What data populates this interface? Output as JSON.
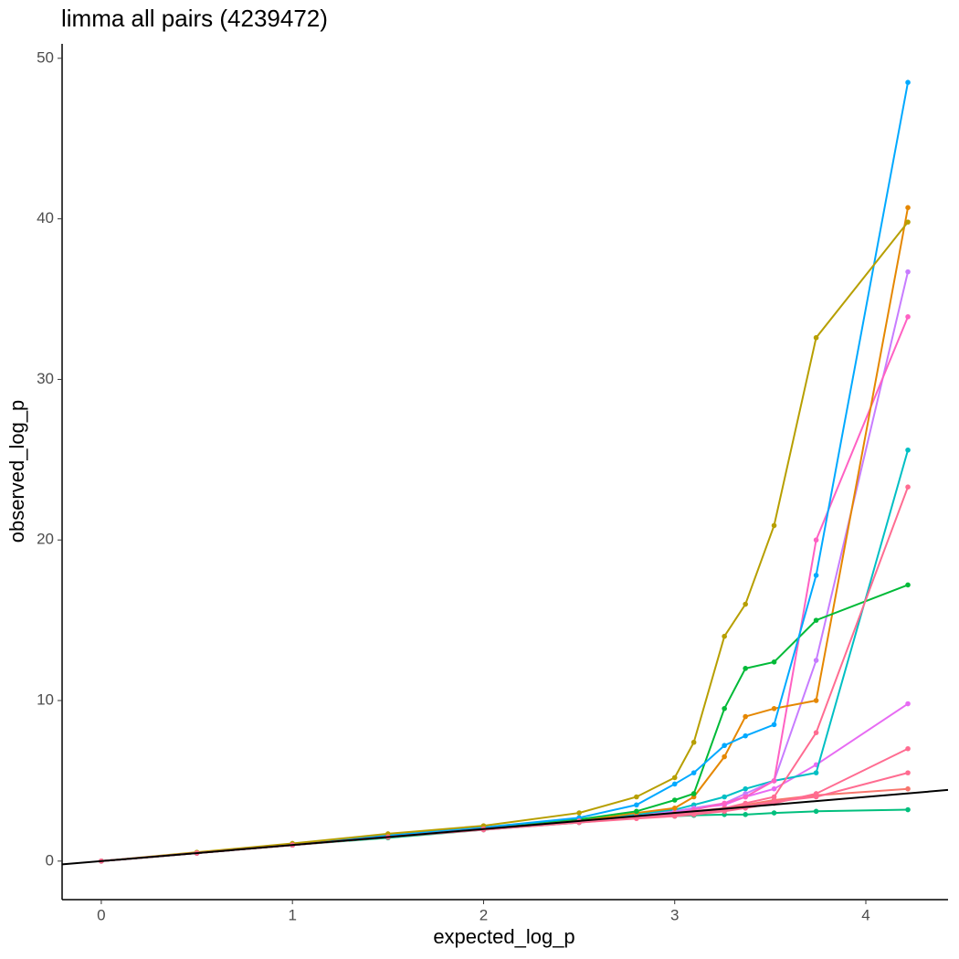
{
  "chart_data": {
    "type": "line",
    "title": "limma all pairs (4239472)",
    "x_label": "expected_log_p",
    "y_label": "observed_log_p",
    "xlim": [
      -0.205,
      4.43
    ],
    "ylim": [
      -2.4,
      50.9
    ],
    "xticks": [
      0,
      1,
      2,
      3,
      4
    ],
    "yticks": [
      0,
      10,
      20,
      30,
      40,
      50
    ],
    "grid": false,
    "points": true,
    "abline": {
      "slope": 1,
      "intercept": 0,
      "color": "#000000"
    },
    "x": [
      0,
      0.5,
      1,
      1.5,
      2,
      2.5,
      2.8,
      3,
      3.1,
      3.26,
      3.37,
      3.52,
      3.74,
      4.22
    ],
    "series": [
      {
        "color": "#00BF7D",
        "values": [
          0,
          0.5,
          1,
          1.45,
          1.95,
          2.4,
          2.7,
          2.8,
          2.85,
          2.9,
          2.9,
          3,
          3.1,
          3.2
        ]
      },
      {
        "color": "#F8766D",
        "values": [
          0,
          0.5,
          1,
          1.5,
          2,
          2.5,
          2.8,
          3,
          3.1,
          3.3,
          3.5,
          3.8,
          4.1,
          4.5
        ]
      },
      {
        "color": "#E76BF3",
        "values": [
          0,
          0.5,
          1,
          1.5,
          2,
          2.5,
          2.8,
          3.1,
          3.3,
          3.5,
          4,
          4.5,
          6,
          9.8
        ]
      },
      {
        "color": "#00BFC4",
        "values": [
          0,
          0.5,
          1,
          1.5,
          2,
          2.5,
          2.9,
          3.2,
          3.5,
          4,
          4.5,
          5,
          5.5,
          25.6
        ]
      },
      {
        "color": "#C77CFF",
        "values": [
          0,
          0.5,
          1,
          1.5,
          2,
          2.45,
          2.8,
          3.1,
          3.3,
          3.6,
          4.2,
          5,
          12.5,
          36.7
        ]
      },
      {
        "color": "#FF61C3",
        "values": [
          0,
          0.5,
          1,
          1.5,
          2,
          2.5,
          2.8,
          3,
          3.2,
          3.6,
          4,
          5,
          20,
          33.9
        ]
      },
      {
        "color": "#E58700",
        "values": [
          0,
          0.5,
          1,
          1.5,
          2,
          2.5,
          3,
          3.3,
          4,
          6.5,
          9,
          9.5,
          10,
          40.7
        ]
      },
      {
        "color": "#00BA38",
        "values": [
          0,
          0.5,
          1,
          1.5,
          2,
          2.6,
          3.1,
          3.8,
          4.2,
          9.5,
          12,
          12.4,
          15,
          17.2
        ]
      },
      {
        "color": "#00A9FF",
        "values": [
          0,
          0.5,
          1.05,
          1.6,
          2.1,
          2.7,
          3.5,
          4.8,
          5.5,
          7.2,
          7.8,
          8.5,
          17.8,
          48.5
        ]
      },
      {
        "color": "#B79F00",
        "values": [
          0,
          0.55,
          1.1,
          1.7,
          2.2,
          3,
          4,
          5.2,
          7.4,
          14,
          16,
          20.9,
          32.6,
          39.8
        ]
      },
      {
        "color": "#FF6C91",
        "values": [
          0,
          0.5,
          1,
          1.5,
          2,
          2.45,
          2.7,
          2.9,
          3,
          3.2,
          3.4,
          3.7,
          4,
          5.5
        ]
      },
      {
        "color": "#FF6C91",
        "values": [
          0,
          0.5,
          1,
          1.5,
          1.95,
          2.4,
          2.65,
          2.8,
          2.9,
          3.1,
          3.3,
          3.6,
          4.2,
          7
        ]
      },
      {
        "color": "#FF6C91",
        "values": [
          0,
          0.5,
          1,
          1.5,
          2,
          2.5,
          2.75,
          2.95,
          3.05,
          3.3,
          3.6,
          4,
          8,
          23.3
        ]
      }
    ]
  }
}
